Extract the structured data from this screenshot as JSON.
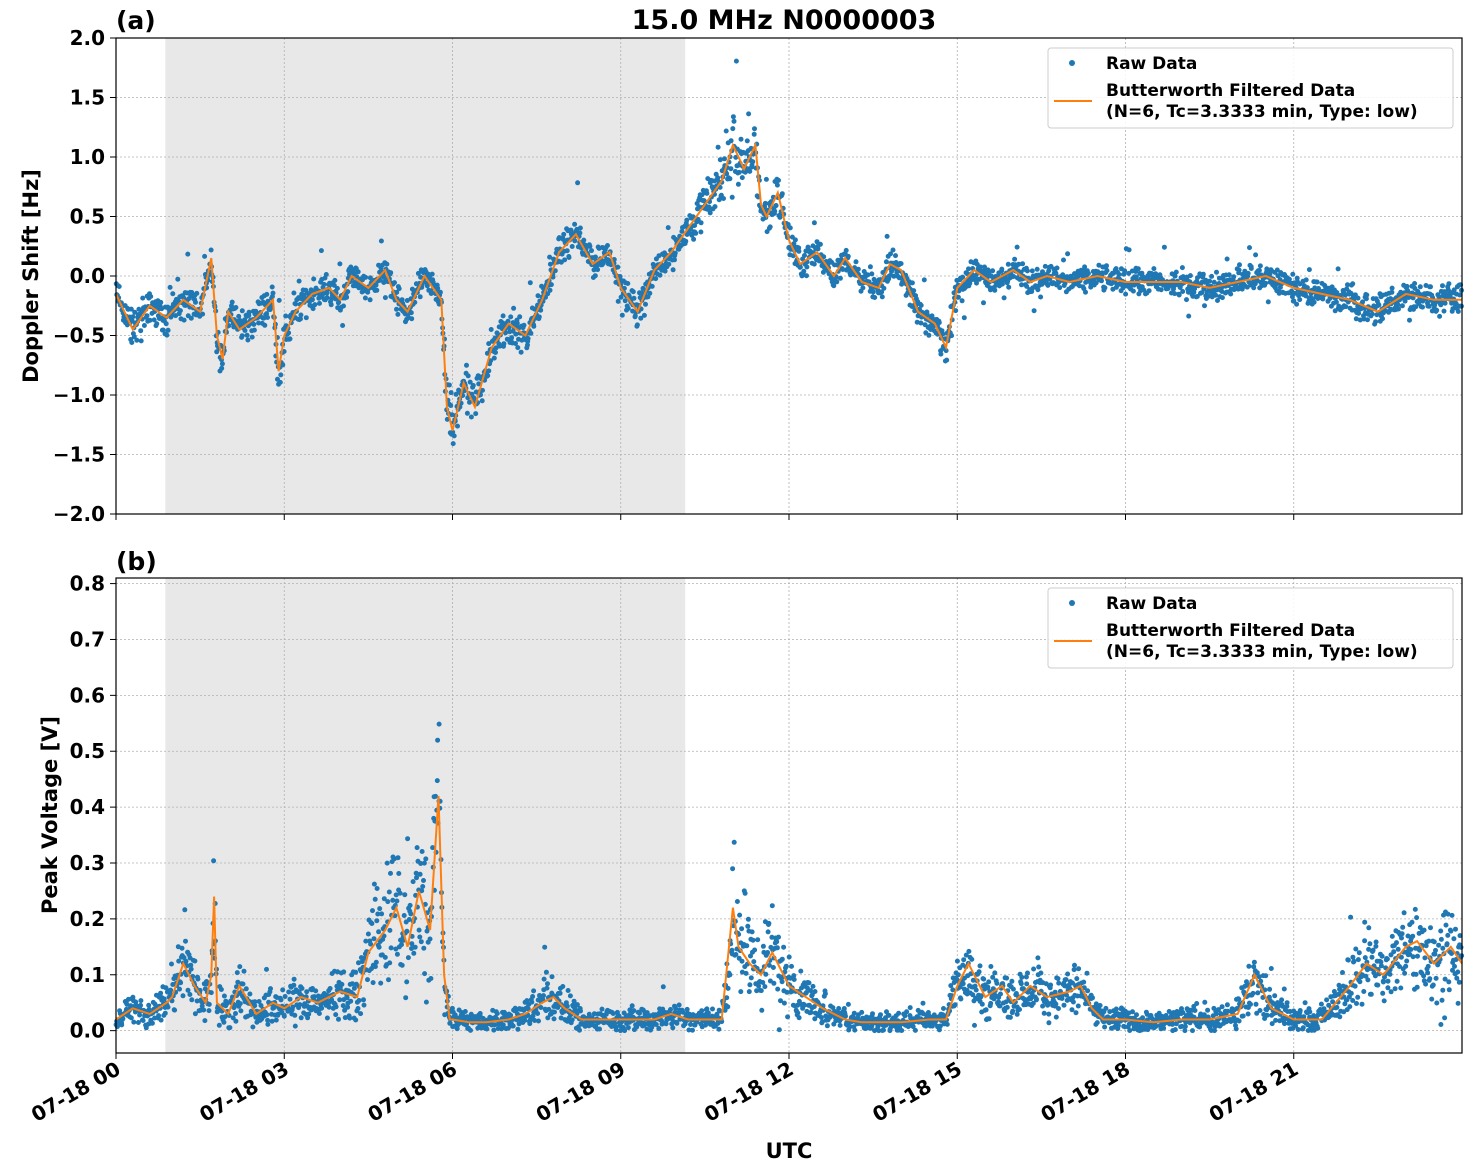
{
  "figure": {
    "title": "15.0 MHz N0000003",
    "xlabel": "UTC",
    "x_tick_labels": [
      "07-18 00",
      "07-18 03",
      "07-18 06",
      "07-18 09",
      "07-18 12",
      "07-18 15",
      "07-18 18",
      "07-18 21"
    ]
  },
  "colors": {
    "raw": "#1f77b4",
    "filtered": "#ff7f0e",
    "shade": "#e8e8e8",
    "grid": "#b0b0b0"
  },
  "chart_data": [
    {
      "type": "scatter",
      "panel_label": "(a)",
      "ylabel": "Doppler Shift [Hz]",
      "xlim_hours_utc": [
        0,
        24
      ],
      "ylim": [
        -2.0,
        2.0
      ],
      "y_tick_labels": [
        "2.0",
        "1.5",
        "1.0",
        "0.5",
        "0.0",
        "−0.5",
        "−1.0",
        "−1.5",
        "−2.0"
      ],
      "y_ticks": [
        2.0,
        1.5,
        1.0,
        0.5,
        0.0,
        -0.5,
        -1.0,
        -1.5,
        -2.0
      ],
      "grid": true,
      "legend_placement": "top-right",
      "shaded_interval_hours_utc": [
        0.88,
        10.15
      ],
      "legend": [
        "Raw Data",
        "Butterworth Filtered Data",
        "(N=6, Tc=3.3333 min, Type: low)"
      ],
      "filtered": {
        "x": [
          0,
          0.3,
          0.6,
          0.9,
          1.2,
          1.5,
          1.7,
          1.8,
          1.9,
          2.0,
          2.2,
          2.5,
          2.8,
          2.9,
          3.0,
          3.2,
          3.5,
          3.8,
          4.0,
          4.2,
          4.5,
          4.8,
          5.0,
          5.2,
          5.5,
          5.8,
          5.9,
          6.0,
          6.2,
          6.4,
          6.7,
          7.0,
          7.3,
          7.6,
          7.9,
          8.2,
          8.5,
          8.8,
          9.0,
          9.3,
          9.6,
          9.9,
          10.2,
          10.5,
          10.8,
          11.0,
          11.2,
          11.4,
          11.5,
          11.6,
          11.8,
          12.0,
          12.2,
          12.5,
          12.8,
          13.0,
          13.3,
          13.6,
          13.8,
          14.0,
          14.3,
          14.6,
          14.8,
          15.0,
          15.3,
          15.6,
          16.0,
          16.3,
          16.6,
          17.0,
          17.5,
          18.0,
          18.5,
          19.0,
          19.5,
          20.0,
          20.5,
          21.0,
          21.5,
          22.0,
          22.5,
          23.0,
          23.5,
          24.0
        ],
        "y": [
          -0.15,
          -0.45,
          -0.25,
          -0.35,
          -0.2,
          -0.3,
          0.15,
          -0.5,
          -0.7,
          -0.3,
          -0.45,
          -0.35,
          -0.2,
          -0.8,
          -0.5,
          -0.3,
          -0.15,
          -0.1,
          -0.2,
          0.0,
          -0.1,
          0.05,
          -0.2,
          -0.3,
          0.0,
          -0.2,
          -1.1,
          -1.3,
          -0.9,
          -1.1,
          -0.6,
          -0.4,
          -0.5,
          -0.2,
          0.2,
          0.35,
          0.1,
          0.2,
          -0.1,
          -0.3,
          0.05,
          0.2,
          0.4,
          0.6,
          0.8,
          1.1,
          0.9,
          1.1,
          0.6,
          0.5,
          0.7,
          0.3,
          0.1,
          0.2,
          0.0,
          0.15,
          -0.05,
          -0.1,
          0.1,
          0.05,
          -0.3,
          -0.4,
          -0.6,
          -0.1,
          0.05,
          -0.05,
          0.05,
          -0.05,
          0.0,
          -0.05,
          0.0,
          -0.05,
          -0.05,
          -0.05,
          -0.1,
          -0.05,
          0.0,
          -0.1,
          -0.15,
          -0.2,
          -0.3,
          -0.15,
          -0.2,
          -0.2
        ]
      }
    },
    {
      "type": "scatter",
      "panel_label": "(b)",
      "ylabel": "Peak Voltage [V]",
      "xlim_hours_utc": [
        0,
        24
      ],
      "ylim": [
        -0.04,
        0.81
      ],
      "y_tick_labels": [
        "0.8",
        "0.7",
        "0.6",
        "0.5",
        "0.4",
        "0.3",
        "0.2",
        "0.1",
        "0.0"
      ],
      "y_ticks": [
        0.8,
        0.7,
        0.6,
        0.5,
        0.4,
        0.3,
        0.2,
        0.1,
        0.0
      ],
      "grid": true,
      "legend_placement": "top-right",
      "shaded_interval_hours_utc": [
        0.88,
        10.15
      ],
      "legend": [
        "Raw Data",
        "Butterworth Filtered Data",
        "(N=6, Tc=3.3333 min, Type: low)"
      ],
      "filtered": {
        "x": [
          0,
          0.3,
          0.6,
          0.9,
          1.0,
          1.2,
          1.4,
          1.6,
          1.7,
          1.75,
          1.8,
          2.0,
          2.2,
          2.5,
          2.8,
          3.0,
          3.3,
          3.6,
          4.0,
          4.3,
          4.5,
          4.8,
          5.0,
          5.2,
          5.4,
          5.6,
          5.75,
          5.85,
          5.95,
          6.0,
          6.3,
          6.6,
          7.0,
          7.3,
          7.6,
          7.8,
          8.0,
          8.3,
          8.6,
          9.0,
          9.3,
          9.6,
          9.9,
          10.2,
          10.5,
          10.8,
          11.0,
          11.1,
          11.3,
          11.5,
          11.7,
          12.0,
          12.3,
          12.6,
          13.0,
          13.3,
          13.6,
          14.0,
          14.5,
          14.8,
          15.0,
          15.2,
          15.5,
          15.8,
          16.0,
          16.3,
          16.6,
          17.0,
          17.2,
          17.4,
          17.6,
          18.0,
          18.5,
          19.0,
          19.5,
          20.0,
          20.3,
          20.6,
          21.0,
          21.5,
          22.0,
          22.3,
          22.6,
          23.0,
          23.2,
          23.5,
          23.8,
          24.0
        ],
        "y": [
          0.02,
          0.04,
          0.03,
          0.05,
          0.06,
          0.12,
          0.08,
          0.05,
          0.1,
          0.24,
          0.05,
          0.03,
          0.08,
          0.03,
          0.05,
          0.04,
          0.06,
          0.05,
          0.07,
          0.06,
          0.14,
          0.18,
          0.22,
          0.15,
          0.25,
          0.18,
          0.42,
          0.1,
          0.02,
          0.02,
          0.015,
          0.015,
          0.02,
          0.03,
          0.05,
          0.06,
          0.04,
          0.02,
          0.02,
          0.02,
          0.02,
          0.02,
          0.03,
          0.02,
          0.02,
          0.02,
          0.22,
          0.15,
          0.12,
          0.1,
          0.14,
          0.08,
          0.06,
          0.04,
          0.02,
          0.015,
          0.015,
          0.015,
          0.02,
          0.02,
          0.08,
          0.12,
          0.06,
          0.08,
          0.05,
          0.08,
          0.06,
          0.07,
          0.08,
          0.04,
          0.02,
          0.02,
          0.015,
          0.02,
          0.02,
          0.03,
          0.1,
          0.04,
          0.02,
          0.02,
          0.08,
          0.12,
          0.1,
          0.15,
          0.16,
          0.12,
          0.15,
          0.12
        ]
      }
    }
  ]
}
